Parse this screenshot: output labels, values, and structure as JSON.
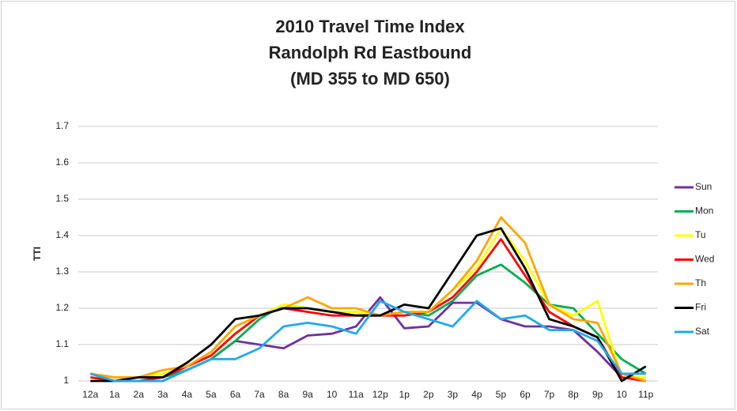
{
  "chart_data": {
    "type": "line",
    "title": [
      "2010 Travel Time Index",
      "Randolph Rd Eastbound",
      "(MD 355 to MD 650)"
    ],
    "y_label": "TTI",
    "categories": [
      "12a",
      "1a",
      "2a",
      "3a",
      "4a",
      "5a",
      "6a",
      "7a",
      "8a",
      "9a",
      "10",
      "11a",
      "12p",
      "1p",
      "2p",
      "3p",
      "4p",
      "5p",
      "6p",
      "7p",
      "8p",
      "9p",
      "10",
      "11p"
    ],
    "series": [
      {
        "name": "Sun",
        "color": "#7030a0",
        "values": [
          1.02,
          1.0,
          1.0,
          1.0,
          1.03,
          1.06,
          1.11,
          1.1,
          1.09,
          1.125,
          1.13,
          1.15,
          1.23,
          1.145,
          1.15,
          1.215,
          1.215,
          1.17,
          1.15,
          1.15,
          1.14,
          1.08,
          1.01,
          1.01
        ]
      },
      {
        "name": "Mon",
        "color": "#00b050",
        "values": [
          1.02,
          1.01,
          1.01,
          1.01,
          1.03,
          1.06,
          1.11,
          1.17,
          1.21,
          1.2,
          1.19,
          1.19,
          1.18,
          1.19,
          1.18,
          1.22,
          1.29,
          1.32,
          1.27,
          1.21,
          1.2,
          1.13,
          1.06,
          1.02
        ]
      },
      {
        "name": "Tu",
        "color": "#ffff00",
        "values": [
          1.02,
          1.01,
          1.01,
          1.02,
          1.04,
          1.07,
          1.13,
          1.18,
          1.21,
          1.2,
          1.19,
          1.19,
          1.18,
          1.19,
          1.19,
          1.25,
          1.31,
          1.42,
          1.33,
          1.21,
          1.18,
          1.22,
          1.01,
          1.01
        ]
      },
      {
        "name": "Wed",
        "color": "#ff0000",
        "values": [
          1.01,
          1.0,
          1.0,
          1.01,
          1.04,
          1.07,
          1.13,
          1.18,
          1.2,
          1.19,
          1.18,
          1.18,
          1.18,
          1.18,
          1.19,
          1.23,
          1.3,
          1.39,
          1.29,
          1.19,
          1.15,
          1.12,
          1.01,
          1.0
        ]
      },
      {
        "name": "Th",
        "color": "#ffa500",
        "values": [
          1.02,
          1.01,
          1.01,
          1.03,
          1.04,
          1.08,
          1.15,
          1.18,
          1.2,
          1.23,
          1.2,
          1.2,
          1.18,
          1.19,
          1.19,
          1.25,
          1.33,
          1.45,
          1.38,
          1.21,
          1.17,
          1.16,
          1.02,
          1.0
        ]
      },
      {
        "name": "Fri",
        "color": "#000000",
        "values": [
          1.0,
          1.0,
          1.01,
          1.01,
          1.05,
          1.1,
          1.17,
          1.18,
          1.2,
          1.2,
          1.19,
          1.18,
          1.18,
          1.21,
          1.2,
          1.3,
          1.4,
          1.42,
          1.31,
          1.17,
          1.15,
          1.12,
          1.0,
          1.04
        ]
      },
      {
        "name": "Sat",
        "color": "#1eaaf1",
        "values": [
          1.02,
          1.0,
          1.0,
          1.0,
          1.03,
          1.06,
          1.06,
          1.09,
          1.15,
          1.16,
          1.15,
          1.13,
          1.22,
          1.19,
          1.17,
          1.15,
          1.22,
          1.17,
          1.18,
          1.14,
          1.14,
          1.11,
          1.02,
          1.02
        ]
      }
    ],
    "ylim": [
      1,
      1.7
    ],
    "yticks": [
      1,
      1.1,
      1.2,
      1.3,
      1.4,
      1.5,
      1.6,
      1.7
    ],
    "grid": true,
    "legend": "right"
  }
}
